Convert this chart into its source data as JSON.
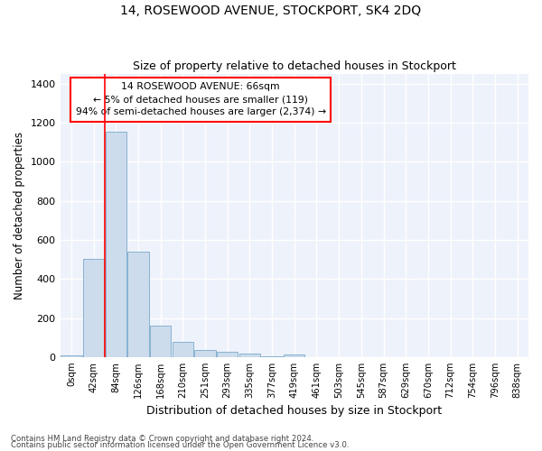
{
  "title": "14, ROSEWOOD AVENUE, STOCKPORT, SK4 2DQ",
  "subtitle": "Size of property relative to detached houses in Stockport",
  "xlabel": "Distribution of detached houses by size in Stockport",
  "ylabel": "Number of detached properties",
  "bar_color": "#cddcec",
  "bar_edge_color": "#7aaacb",
  "background_color": "#eef2fa",
  "grid_color": "#ffffff",
  "categories": [
    "0sqm",
    "42sqm",
    "84sqm",
    "126sqm",
    "168sqm",
    "210sqm",
    "251sqm",
    "293sqm",
    "335sqm",
    "377sqm",
    "419sqm",
    "461sqm",
    "503sqm",
    "545sqm",
    "587sqm",
    "629sqm",
    "670sqm",
    "712sqm",
    "754sqm",
    "796sqm",
    "838sqm"
  ],
  "values": [
    10,
    505,
    1155,
    540,
    160,
    80,
    35,
    28,
    18,
    5,
    15,
    0,
    0,
    0,
    0,
    0,
    0,
    0,
    0,
    0,
    0
  ],
  "ylim": [
    0,
    1450
  ],
  "yticks": [
    0,
    200,
    400,
    600,
    800,
    1000,
    1200,
    1400
  ],
  "property_label": "14 ROSEWOOD AVENUE: 66sqm",
  "pct_smaller": "5% of detached houses are smaller (119)",
  "pct_larger": "94% of semi-detached houses are larger (2,374)",
  "vline_x": 2.0,
  "footer_line1": "Contains HM Land Registry data © Crown copyright and database right 2024.",
  "footer_line2": "Contains public sector information licensed under the Open Government Licence v3.0."
}
